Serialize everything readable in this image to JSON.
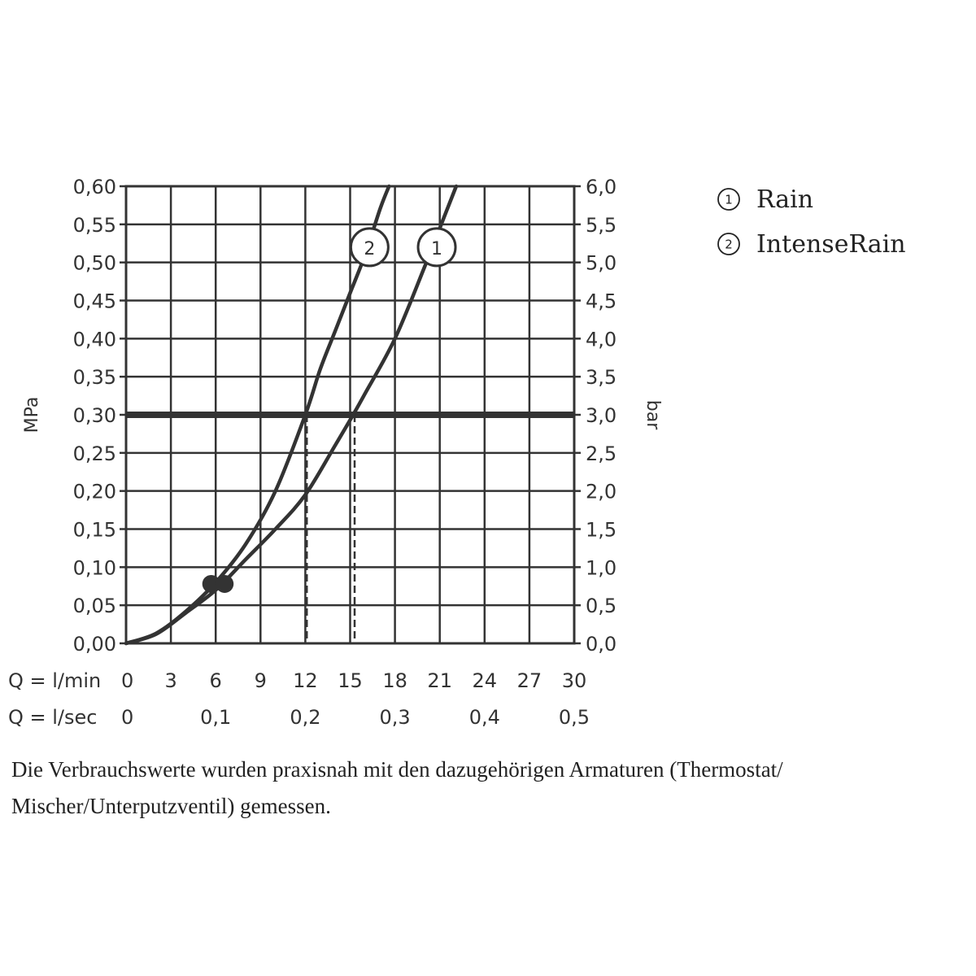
{
  "chart_data": {
    "type": "line",
    "x_axis": {
      "rows": [
        {
          "label": "Q = l/min",
          "ticks": [
            "0",
            "3",
            "6",
            "9",
            "12",
            "15",
            "18",
            "21",
            "24",
            "27",
            "30"
          ],
          "values": [
            0,
            3,
            6,
            9,
            12,
            15,
            18,
            21,
            24,
            27,
            30
          ]
        },
        {
          "label": "Q = l/sec",
          "ticks": [
            "0",
            "0,1",
            "0,2",
            "0,3",
            "0,4",
            "0,5"
          ],
          "values": [
            0,
            6,
            12,
            18,
            24,
            30
          ]
        }
      ],
      "xlim": [
        0,
        30
      ]
    },
    "y_axis_left": {
      "label": "MPa",
      "ticks": [
        "0,00",
        "0,05",
        "0,10",
        "0,15",
        "0,20",
        "0,25",
        "0,30",
        "0,35",
        "0,40",
        "0,45",
        "0,50",
        "0,55",
        "0,60"
      ],
      "ylim": [
        0,
        0.6
      ]
    },
    "y_axis_right": {
      "label": "bar",
      "ticks": [
        "0,0",
        "0,5",
        "1,0",
        "1,5",
        "2,0",
        "2,5",
        "3,0",
        "3,5",
        "4,0",
        "4,5",
        "5,0",
        "5,5",
        "6,0"
      ],
      "ylim": [
        0,
        6
      ]
    },
    "grid": true,
    "reference_line": {
      "y": 0.3,
      "label": ""
    },
    "series": [
      {
        "name": "Rain",
        "marker": "1",
        "x": [
          0,
          2,
          4,
          6,
          8,
          10,
          12,
          14,
          15.2,
          16,
          18,
          20,
          21,
          22.1
        ],
        "y": [
          0,
          0.012,
          0.04,
          0.07,
          0.11,
          0.15,
          0.195,
          0.26,
          0.3,
          0.328,
          0.4,
          0.495,
          0.545,
          0.6
        ]
      },
      {
        "name": "IntenseRain",
        "marker": "2",
        "x": [
          0,
          2,
          4,
          6,
          8,
          10,
          12,
          13,
          14,
          15,
          16,
          17,
          17.6
        ],
        "y": [
          0,
          0.013,
          0.042,
          0.08,
          0.13,
          0.2,
          0.3,
          0.36,
          0.41,
          0.46,
          0.51,
          0.57,
          0.6
        ]
      }
    ],
    "dashed_markers": [
      {
        "x": 12.1,
        "y": 0.3
      },
      {
        "x": 15.3,
        "y": 0.3
      }
    ],
    "points": [
      {
        "x": 5.7,
        "y": 0.078
      },
      {
        "x": 6.6,
        "y": 0.078
      }
    ]
  },
  "legend": {
    "items": [
      {
        "num": "1",
        "text": "Rain"
      },
      {
        "num": "2",
        "text": "IntenseRain"
      }
    ]
  },
  "footnote": {
    "line1": "Die Verbrauchswerte wurden praxisnah mit den dazugehörigen Armaturen (Thermostat/",
    "line2": "Mischer/Unterputzventil) gemessen."
  },
  "colors": {
    "ink": "#333333",
    "grid": "#333333",
    "background": "#ffffff"
  }
}
